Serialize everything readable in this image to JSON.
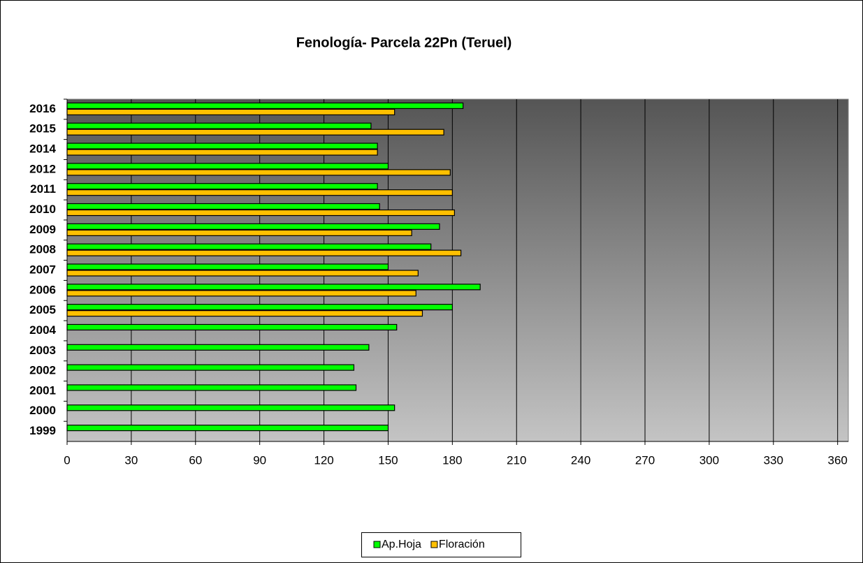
{
  "chart_data": {
    "type": "barh",
    "title": "Fenología- Parcela 22Pn (Teruel)",
    "categories": [
      "2016",
      "2015",
      "2014",
      "2012",
      "2011",
      "2010",
      "2009",
      "2008",
      "2007",
      "2006",
      "2005",
      "2004",
      "2003",
      "2002",
      "2001",
      "2000",
      "1999"
    ],
    "series": [
      {
        "name": "Ap.Hoja",
        "color": "#00ff00",
        "values": [
          185,
          142,
          145,
          150,
          145,
          146,
          174,
          170,
          150,
          193,
          180,
          154,
          141,
          134,
          135,
          153,
          150
        ]
      },
      {
        "name": "Floración",
        "color": "#ffc000",
        "values": [
          153,
          176,
          145,
          179,
          180,
          181,
          161,
          184,
          164,
          163,
          166,
          null,
          null,
          null,
          null,
          null,
          null
        ]
      }
    ],
    "xlim": [
      0,
      365
    ],
    "xticks": [
      0,
      30,
      60,
      90,
      120,
      150,
      180,
      210,
      240,
      270,
      300,
      330,
      360
    ],
    "grid": true,
    "legend": "bottom"
  }
}
